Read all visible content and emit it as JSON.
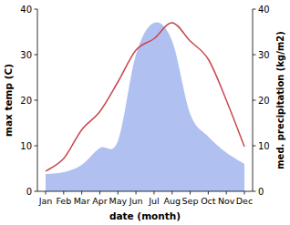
{
  "chart_data": {
    "type": "line",
    "xlabel": "date (month)",
    "ylabel": "max temp (C)",
    "y2label": "med. precipitation (kg/m2)",
    "categories": [
      "Jan",
      "Feb",
      "Mar",
      "Apr",
      "May",
      "Jun",
      "Jul",
      "Aug",
      "Sep",
      "Oct",
      "Nov",
      "Dec"
    ],
    "series": [
      {
        "type": "area",
        "axis": "y2",
        "color": "#b0c0f0",
        "values": [
          3.8,
          4.2,
          5.8,
          9.5,
          11,
          30,
          37,
          33,
          17,
          12,
          8.5,
          6
        ]
      },
      {
        "type": "line",
        "axis": "y",
        "color": "#c8474e",
        "values": [
          4.4,
          7.2,
          13.5,
          17.5,
          24,
          31,
          33.5,
          37,
          33,
          29,
          20,
          9.8
        ]
      }
    ],
    "ylim": [
      0,
      40
    ],
    "yticks": [
      0,
      10,
      20,
      30,
      40
    ],
    "y2lim": [
      0,
      40
    ],
    "y2ticks": [
      0,
      10,
      20,
      30,
      40
    ]
  }
}
